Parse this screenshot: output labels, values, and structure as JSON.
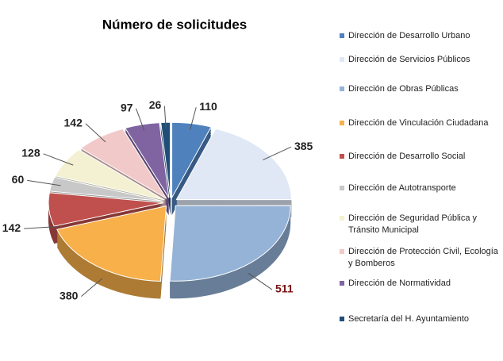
{
  "chart_data": {
    "type": "pie",
    "title": "Número de solicitudes",
    "categories": [
      "Dirección de Desarrollo Urbano",
      "Dirección de Servicios Públicos",
      "Dirección de Obras Públicas",
      "Dirección de Vinculación Ciudadana",
      "Dirección de Desarrollo Social",
      "Dirección de Autotransporte",
      "Dirección de Seguridad Pública y Tránsito Municipal",
      "Dirección de Protección Civil, Ecología y Bomberos",
      "Dirección de Normatividad",
      "Secretaría del H. Ayuntamiento"
    ],
    "values": [
      110,
      385,
      511,
      380,
      142,
      60,
      128,
      142,
      97,
      26
    ],
    "colors": [
      "#4f81bd",
      "#dfe8f4",
      "#95b3d7",
      "#f7b04a",
      "#c0504d",
      "#c8c8c8",
      "#f3f1d2",
      "#f2c9c9",
      "#8064a2",
      "#1f4e79"
    ],
    "legend": "right"
  }
}
